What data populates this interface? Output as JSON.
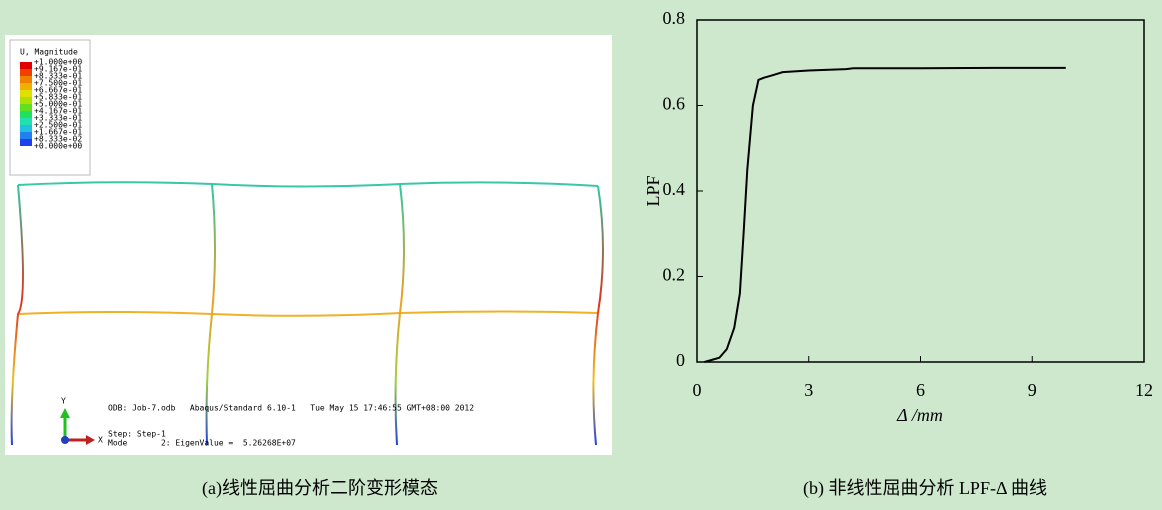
{
  "panel_a": {
    "legend_title": "U, Magnitude",
    "legend_values": [
      "+1.000e+00",
      "+9.167e-01",
      "+8.333e-01",
      "+7.500e-01",
      "+6.667e-01",
      "+5.833e-01",
      "+5.000e-01",
      "+4.167e-01",
      "+3.333e-01",
      "+2.500e-01",
      "+1.667e-01",
      "+8.333e-02",
      "+0.000e+00"
    ],
    "info": "ODB: Job-7.odb   Abaqus/Standard 6.10-1   Tue May 15 17:46:55 GMT+08:00 2012",
    "step": "Step: Step-1",
    "mode": "Mode       2: EigenValue =  5.26268E+07",
    "axis_y": "Y",
    "axis_x": "X",
    "caption": "(a)线性屈曲分析二阶变形模态"
  },
  "chart_data": {
    "type": "line",
    "caption": "(b) 非线性屈曲分析 LPF-Δ 曲线",
    "xlabel": "Δ /mm",
    "ylabel": "LPF",
    "x": [
      0.2,
      0.4,
      0.6,
      0.8,
      1.0,
      1.15,
      1.25,
      1.35,
      1.5,
      1.65,
      1.8,
      2.0,
      2.3,
      3.0,
      4.0,
      4.2,
      6.0,
      8.0,
      9.9
    ],
    "values": [
      0,
      0.005,
      0.01,
      0.03,
      0.08,
      0.16,
      0.3,
      0.45,
      0.6,
      0.66,
      0.665,
      0.67,
      0.678,
      0.682,
      0.685,
      0.687,
      0.687,
      0.688,
      0.688
    ],
    "color": "#000000",
    "xlim": [
      0,
      12
    ],
    "xticks": [
      0,
      3,
      6,
      9,
      12
    ],
    "ylim": [
      0,
      0.8
    ],
    "yticks": [
      0,
      0.2,
      0.4,
      0.6,
      0.8
    ]
  }
}
